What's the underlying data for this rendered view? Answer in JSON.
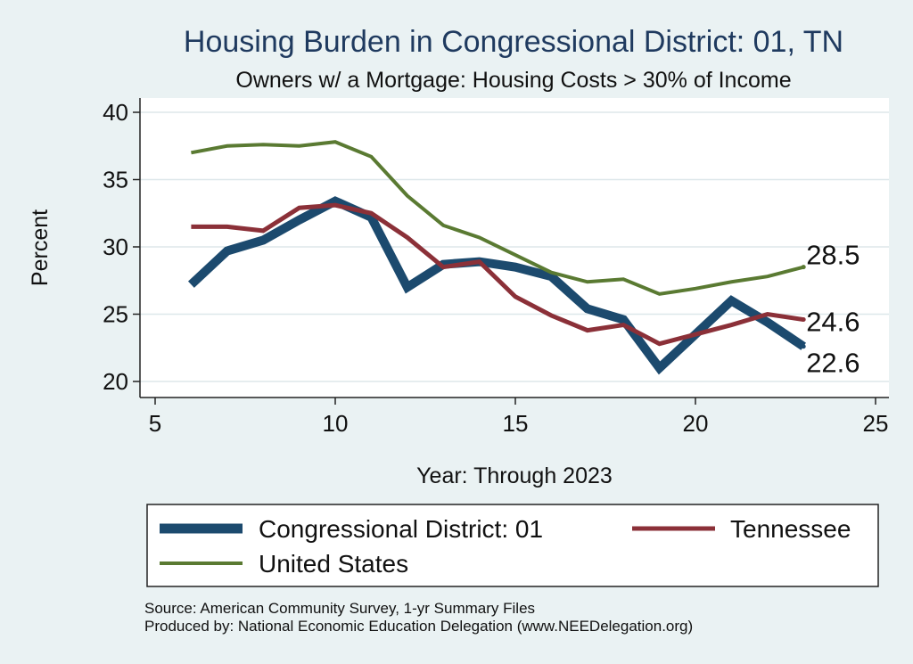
{
  "title": "Housing Burden in Congressional District:  01, TN",
  "subtitle": "Owners w/ a Mortgage: Housing Costs > 30% of Income",
  "source_lines": [
    "Source: American Community Survey, 1-yr Summary Files",
    "Produced by: National Economic Education Delegation (www.NEEDelegation.org)"
  ],
  "colors": {
    "district": "#1c4a6e",
    "tennessee": "#8b3038",
    "us": "#5a7a32",
    "grid": "#dde7ea"
  },
  "chart_data": {
    "type": "line",
    "title": "Housing Burden in Congressional District:  01, TN",
    "subtitle": "Owners w/ a Mortgage: Housing Costs > 30% of Income",
    "xlabel": "Year: Through 2023",
    "ylabel": "Percent",
    "xlim": [
      5,
      25
    ],
    "ylim": [
      20,
      40
    ],
    "xticks": [
      5,
      10,
      15,
      20,
      25
    ],
    "yticks": [
      20,
      25,
      30,
      35,
      40
    ],
    "grid": true,
    "legend_position": "bottom",
    "series": [
      {
        "name": "Congressional District:  01",
        "color_key": "district",
        "x": [
          6,
          7,
          8,
          9,
          10,
          11,
          12,
          13,
          14,
          15,
          16,
          17,
          18,
          19,
          20,
          21,
          22,
          23
        ],
        "y": [
          27.2,
          29.7,
          30.5,
          32.0,
          33.4,
          32.2,
          27.0,
          28.7,
          28.9,
          28.5,
          27.8,
          25.4,
          24.6,
          21.0,
          23.5,
          26.0,
          24.4,
          22.6
        ],
        "end_label": "22.6"
      },
      {
        "name": "Tennessee",
        "color_key": "tennessee",
        "x": [
          6,
          7,
          8,
          9,
          10,
          11,
          12,
          13,
          14,
          15,
          16,
          17,
          18,
          19,
          20,
          21,
          22,
          23
        ],
        "y": [
          31.5,
          31.5,
          31.2,
          32.9,
          33.1,
          32.5,
          30.7,
          28.5,
          28.9,
          26.3,
          24.9,
          23.8,
          24.2,
          22.8,
          23.5,
          24.2,
          25.0,
          24.6
        ],
        "end_label": "24.6"
      },
      {
        "name": "United States",
        "color_key": "us",
        "x": [
          6,
          7,
          8,
          9,
          10,
          11,
          12,
          13,
          14,
          15,
          16,
          17,
          18,
          19,
          20,
          21,
          22,
          23
        ],
        "y": [
          37.0,
          37.5,
          37.6,
          37.5,
          37.8,
          36.7,
          33.8,
          31.6,
          30.7,
          29.4,
          28.1,
          27.4,
          27.6,
          26.5,
          26.9,
          27.4,
          27.8,
          28.5
        ],
        "end_label": "28.5"
      }
    ]
  }
}
